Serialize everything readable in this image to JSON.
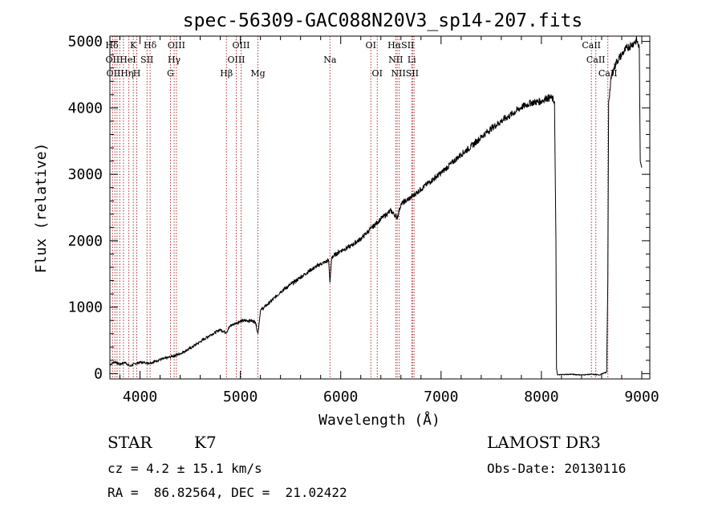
{
  "chart_data": {
    "type": "line",
    "title": "spec-56309-GAC088N20V3_sp14-207.fits",
    "xlabel": "Wavelength (Å)",
    "ylabel": "Flux (relative)",
    "xlim": [
      3700,
      9080
    ],
    "ylim": [
      -80,
      5080
    ],
    "xticks": [
      4000,
      5000,
      6000,
      7000,
      8000,
      9000
    ],
    "yticks": [
      0,
      1000,
      2000,
      3000,
      4000,
      5000
    ],
    "series": [
      {
        "name": "spectrum",
        "x": [
          3700,
          3750,
          3800,
          3850,
          3900,
          3950,
          4000,
          4100,
          4200,
          4300,
          4400,
          4500,
          4600,
          4700,
          4800,
          4860,
          4900,
          5000,
          5100,
          5150,
          5175,
          5200,
          5300,
          5400,
          5500,
          5600,
          5700,
          5800,
          5880,
          5893,
          5910,
          6000,
          6100,
          6200,
          6300,
          6400,
          6500,
          6563,
          6600,
          6700,
          6800,
          6900,
          7000,
          7100,
          7200,
          7300,
          7400,
          7500,
          7600,
          7700,
          7800,
          7900,
          8000,
          8050,
          8100,
          8130,
          8145,
          8150,
          8160,
          8200,
          8300,
          8400,
          8500,
          8580,
          8610,
          8650,
          8662,
          8670,
          8700,
          8750,
          8800,
          8850,
          8900,
          8950,
          8975,
          8985,
          9000
        ],
        "y": [
          130,
          180,
          140,
          170,
          110,
          150,
          170,
          160,
          210,
          250,
          300,
          380,
          480,
          580,
          660,
          620,
          720,
          790,
          800,
          780,
          600,
          950,
          1080,
          1230,
          1340,
          1450,
          1560,
          1650,
          1700,
          1370,
          1750,
          1850,
          1920,
          2030,
          2180,
          2330,
          2450,
          2350,
          2550,
          2650,
          2780,
          2900,
          3020,
          3160,
          3300,
          3420,
          3560,
          3690,
          3800,
          3900,
          4010,
          4080,
          4100,
          4150,
          4150,
          4100,
          2000,
          80,
          -20,
          -15,
          -10,
          -20,
          -10,
          -20,
          0,
          20,
          1400,
          4100,
          4500,
          4700,
          4800,
          4900,
          4950,
          5020,
          4900,
          3200,
          3100
        ]
      }
    ],
    "spectral_lines": [
      {
        "label": "Hδ",
        "x": 3720,
        "row": 1
      },
      {
        "label": "K",
        "x": 3933,
        "row": 1
      },
      {
        "label": "Hδ",
        "x": 4101,
        "row": 1
      },
      {
        "label": "OIII",
        "x": 4363,
        "row": 1
      },
      {
        "label": "OIII",
        "x": 5007,
        "row": 1
      },
      {
        "label": "OI",
        "x": 6300,
        "row": 1
      },
      {
        "label": "HαSII",
        "x": 6600,
        "row": 1
      },
      {
        "label": "CaII",
        "x": 8498,
        "row": 1
      },
      {
        "label": "OII",
        "x": 3727,
        "row": 2
      },
      {
        "label": "HeI",
        "x": 3880,
        "row": 2
      },
      {
        "label": "SII",
        "x": 4070,
        "row": 2
      },
      {
        "label": "Hγ",
        "x": 4340,
        "row": 2
      },
      {
        "label": "OIII",
        "x": 4959,
        "row": 2
      },
      {
        "label": "Na",
        "x": 5893,
        "row": 2
      },
      {
        "label": "NII",
        "x": 6548,
        "row": 2
      },
      {
        "label": "Li",
        "x": 6708,
        "row": 2
      },
      {
        "label": "CaII",
        "x": 8542,
        "row": 2
      },
      {
        "label": "OIIHη",
        "x": 3800,
        "row": 3
      },
      {
        "label": "H",
        "x": 3968,
        "row": 3
      },
      {
        "label": "G",
        "x": 4304,
        "row": 3
      },
      {
        "label": "Hβ",
        "x": 4861,
        "row": 3
      },
      {
        "label": "Mg",
        "x": 5175,
        "row": 3
      },
      {
        "label": "OI",
        "x": 6364,
        "row": 3
      },
      {
        "label": "NIISII",
        "x": 6640,
        "row": 3
      },
      {
        "label": "CaII",
        "x": 8662,
        "row": 3
      }
    ],
    "line_markers": [
      3727,
      3750,
      3771,
      3798,
      3835,
      3889,
      3933,
      3968,
      4070,
      4101,
      4304,
      4340,
      4363,
      4861,
      4959,
      5007,
      5175,
      5893,
      6300,
      6364,
      6548,
      6563,
      6583,
      6708,
      6716,
      6731,
      8498,
      8542,
      8662
    ],
    "line_color": "#b03030",
    "spectrum_color": "#000000"
  },
  "info": {
    "class": "STAR",
    "subclass": "K7",
    "survey": "LAMOST DR3",
    "redshift": "cz = 4.2 ± 15.1 km/s",
    "obsdate": "Obs-Date: 20130116",
    "coords": "RA =  86.82564, DEC =  21.02422"
  }
}
